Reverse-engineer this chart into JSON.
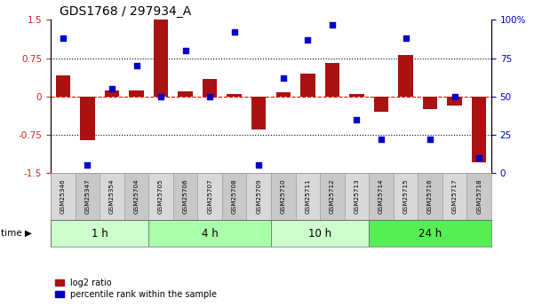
{
  "title": "GDS1768 / 297934_A",
  "samples": [
    "GSM25346",
    "GSM25347",
    "GSM25354",
    "GSM25704",
    "GSM25705",
    "GSM25706",
    "GSM25707",
    "GSM25708",
    "GSM25709",
    "GSM25710",
    "GSM25711",
    "GSM25712",
    "GSM25713",
    "GSM25714",
    "GSM25715",
    "GSM25716",
    "GSM25717",
    "GSM25718"
  ],
  "log2_ratio": [
    0.42,
    -0.85,
    0.12,
    0.12,
    1.5,
    0.1,
    0.35,
    0.05,
    -0.65,
    0.08,
    0.45,
    0.65,
    0.05,
    -0.3,
    0.82,
    -0.25,
    -0.18,
    -1.3
  ],
  "percentile": [
    88,
    5,
    55,
    70,
    50,
    80,
    50,
    92,
    5,
    62,
    87,
    97,
    35,
    22,
    88,
    22,
    50,
    10
  ],
  "groups": [
    {
      "label": "1 h",
      "start": 0,
      "end": 4,
      "color": "#ccffcc"
    },
    {
      "label": "4 h",
      "start": 4,
      "end": 9,
      "color": "#aaffaa"
    },
    {
      "label": "10 h",
      "start": 9,
      "end": 13,
      "color": "#ccffcc"
    },
    {
      "label": "24 h",
      "start": 13,
      "end": 18,
      "color": "#55ee55"
    }
  ],
  "bar_color": "#aa1111",
  "dot_color": "#0000cc",
  "bg_color": "#ffffff",
  "left_axis_color": "#cc2222",
  "right_axis_color": "#0000cc",
  "ylim_left": [
    -1.5,
    1.5
  ],
  "ylim_right": [
    0,
    100
  ],
  "yticks_left": [
    -1.5,
    -0.75,
    0.0,
    0.75,
    1.5
  ],
  "ytick_labels_left": [
    "-1.5",
    "-0.75",
    "0",
    "0.75",
    "1.5"
  ],
  "yticks_right": [
    0,
    25,
    50,
    75,
    100
  ],
  "ytick_labels_right": [
    "0",
    "25",
    "50",
    "75",
    "100%"
  ],
  "hline_dotted": [
    0.75,
    -0.75
  ],
  "hline_dashed_red": 0.0
}
